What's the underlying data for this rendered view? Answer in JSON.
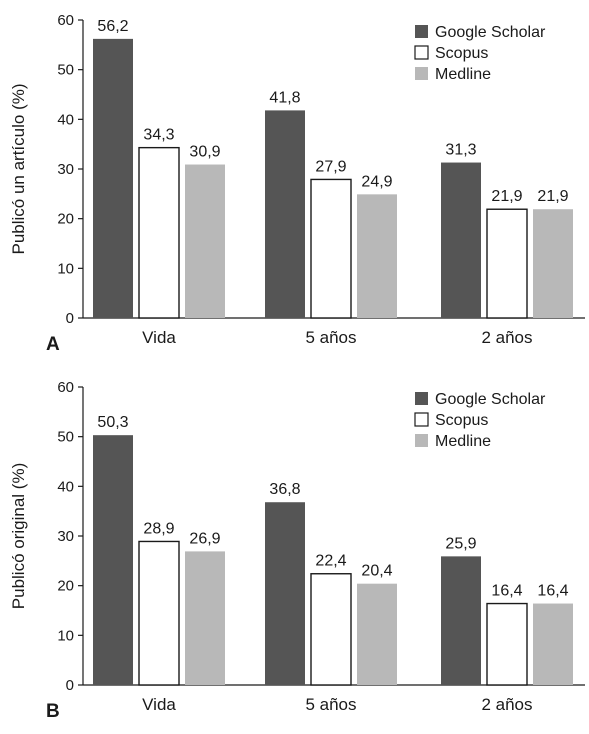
{
  "colors": {
    "google_scholar": "#555555",
    "scopus": "#ffffff",
    "medline": "#b8b8b8",
    "axis": "#1a1a1a"
  },
  "chart_data": [
    {
      "type": "bar",
      "panel_label": "A",
      "ylabel": "Publicó un artículo (%)",
      "xlabel": "",
      "categories": [
        "Vida",
        "5 años",
        "2 años"
      ],
      "ylim": [
        0,
        60
      ],
      "yticks": [
        "0",
        "10",
        "20",
        "30",
        "40",
        "50",
        "60"
      ],
      "grid": false,
      "legend_position": "top-right",
      "series": [
        {
          "name": "Google Scholar",
          "values": [
            56.2,
            41.8,
            31.3
          ],
          "labels": [
            "56,2",
            "41,8",
            "31,3"
          ]
        },
        {
          "name": "Scopus",
          "values": [
            34.3,
            27.9,
            21.9
          ],
          "labels": [
            "34,3",
            "27,9",
            "21,9"
          ]
        },
        {
          "name": "Medline",
          "values": [
            30.9,
            24.9,
            21.9
          ],
          "labels": [
            "30,9",
            "24,9",
            "21,9"
          ]
        }
      ]
    },
    {
      "type": "bar",
      "panel_label": "B",
      "ylabel": "Publicó original (%)",
      "xlabel": "",
      "categories": [
        "Vida",
        "5 años",
        "2 años"
      ],
      "ylim": [
        0,
        60
      ],
      "yticks": [
        "0",
        "10",
        "20",
        "30",
        "40",
        "50",
        "60"
      ],
      "grid": false,
      "legend_position": "top-right",
      "series": [
        {
          "name": "Google Scholar",
          "values": [
            50.3,
            36.8,
            25.9
          ],
          "labels": [
            "50,3",
            "36,8",
            "25,9"
          ]
        },
        {
          "name": "Scopus",
          "values": [
            28.9,
            22.4,
            16.4
          ],
          "labels": [
            "28,9",
            "22,4",
            "16,4"
          ]
        },
        {
          "name": "Medline",
          "values": [
            26.9,
            20.4,
            16.4
          ],
          "labels": [
            "26,9",
            "20,4",
            "16,4"
          ]
        }
      ]
    }
  ]
}
